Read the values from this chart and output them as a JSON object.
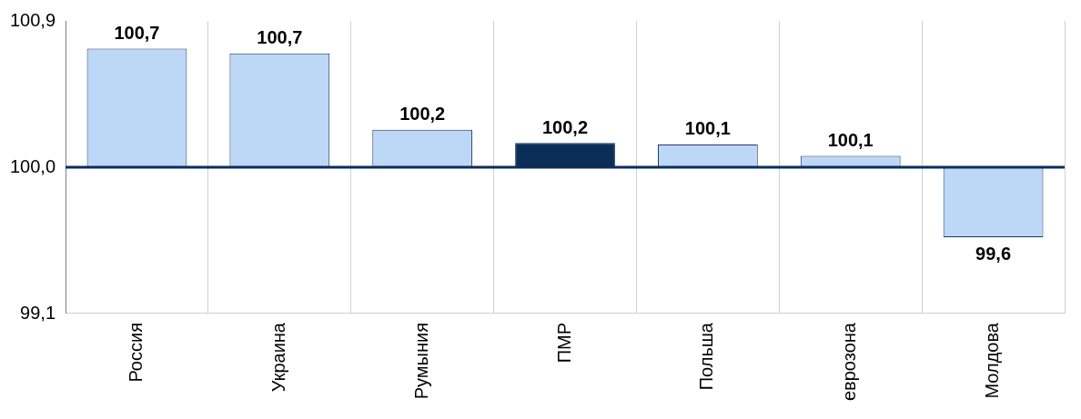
{
  "chart_data": {
    "type": "bar",
    "categories": [
      "Россия",
      "Украина",
      "Румыния",
      "ПМР",
      "Польша",
      "еврозона",
      "Молдова"
    ],
    "values": [
      0.73,
      0.7,
      0.23,
      0.15,
      0.14,
      0.07,
      -0.43
    ],
    "base": [
      100.0,
      100.0,
      100.0,
      100.0,
      100.0,
      100.0,
      100.0
    ],
    "value_labels": [
      "100,7",
      "100,7",
      "100,2",
      "100,2",
      "100,1",
      "100,1",
      "99,6"
    ],
    "colors": [
      "#bdd7f7",
      "#bdd7f7",
      "#bdd7f7",
      "#0b2e59",
      "#bdd7f7",
      "#bdd7f7",
      "#bdd7f7"
    ],
    "ylim": [
      99.1,
      100.9
    ],
    "yticks": [
      {
        "value": 99.1,
        "label": "99,1"
      },
      {
        "value": 100.0,
        "label": "100,0"
      },
      {
        "value": 100.9,
        "label": "100,9"
      }
    ],
    "ref_lines": [
      {
        "axis": "y",
        "value": 100.0,
        "label": null,
        "color": "#0b2e59"
      }
    ],
    "grid": "x",
    "legend": false
  }
}
